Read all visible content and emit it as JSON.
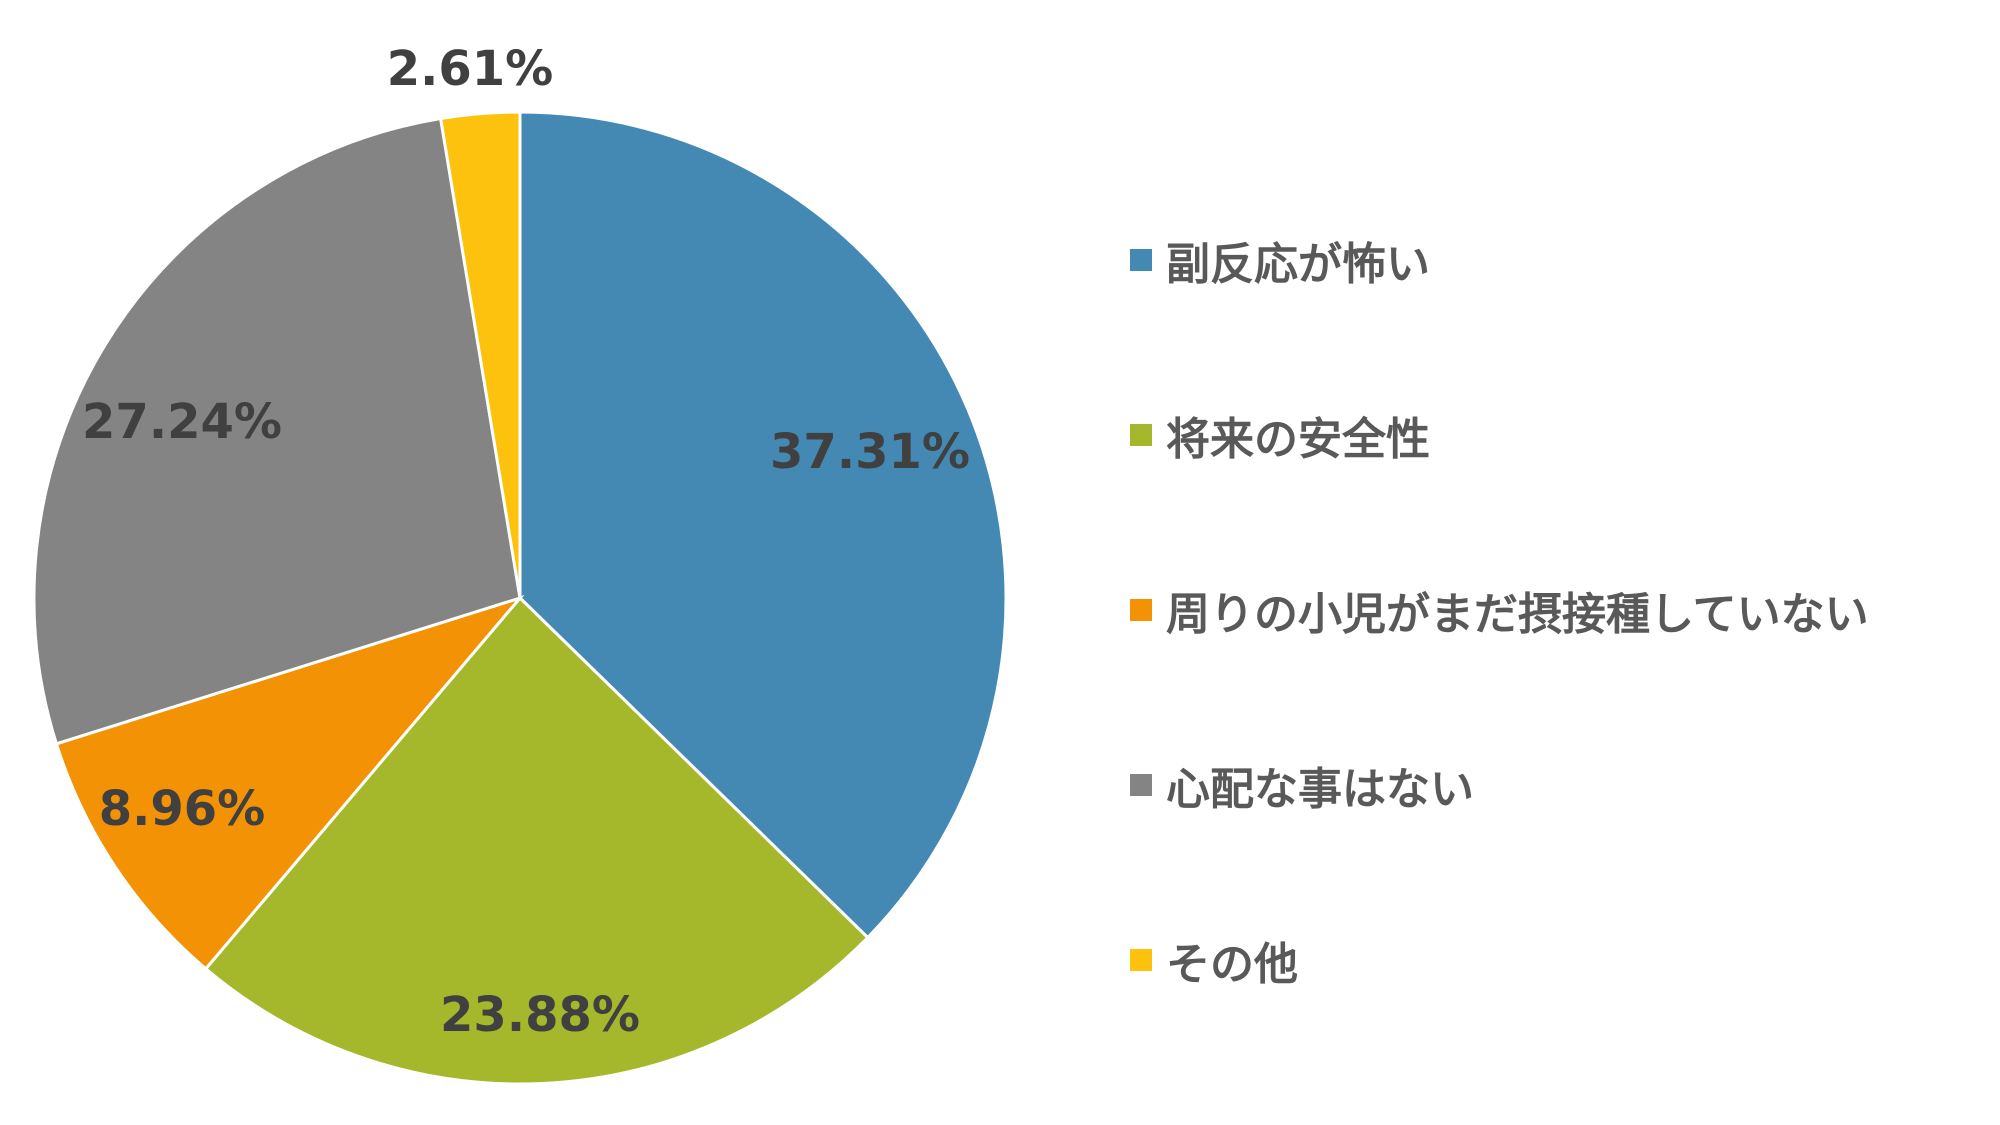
{
  "chart_data": {
    "type": "pie",
    "title": "",
    "start_angle_deg": 0,
    "direction": "clockwise",
    "legend_position": "right",
    "slices": [
      {
        "label": "副反応が怖い",
        "value": 37.31,
        "display": "37.31%",
        "color": "#4389B3"
      },
      {
        "label": "将来の安全性",
        "value": 23.88,
        "display": "23.88%",
        "color": "#A5B82B"
      },
      {
        "label": "周りの小児がまだ摂接種していない",
        "value": 8.96,
        "display": "8.96%",
        "color": "#F39205"
      },
      {
        "label": "心配な事はない",
        "value": 27.24,
        "display": "27.24%",
        "color": "#848484"
      },
      {
        "label": "その他",
        "value": 2.61,
        "display": "2.61%",
        "color": "#FDC20D"
      }
    ]
  }
}
